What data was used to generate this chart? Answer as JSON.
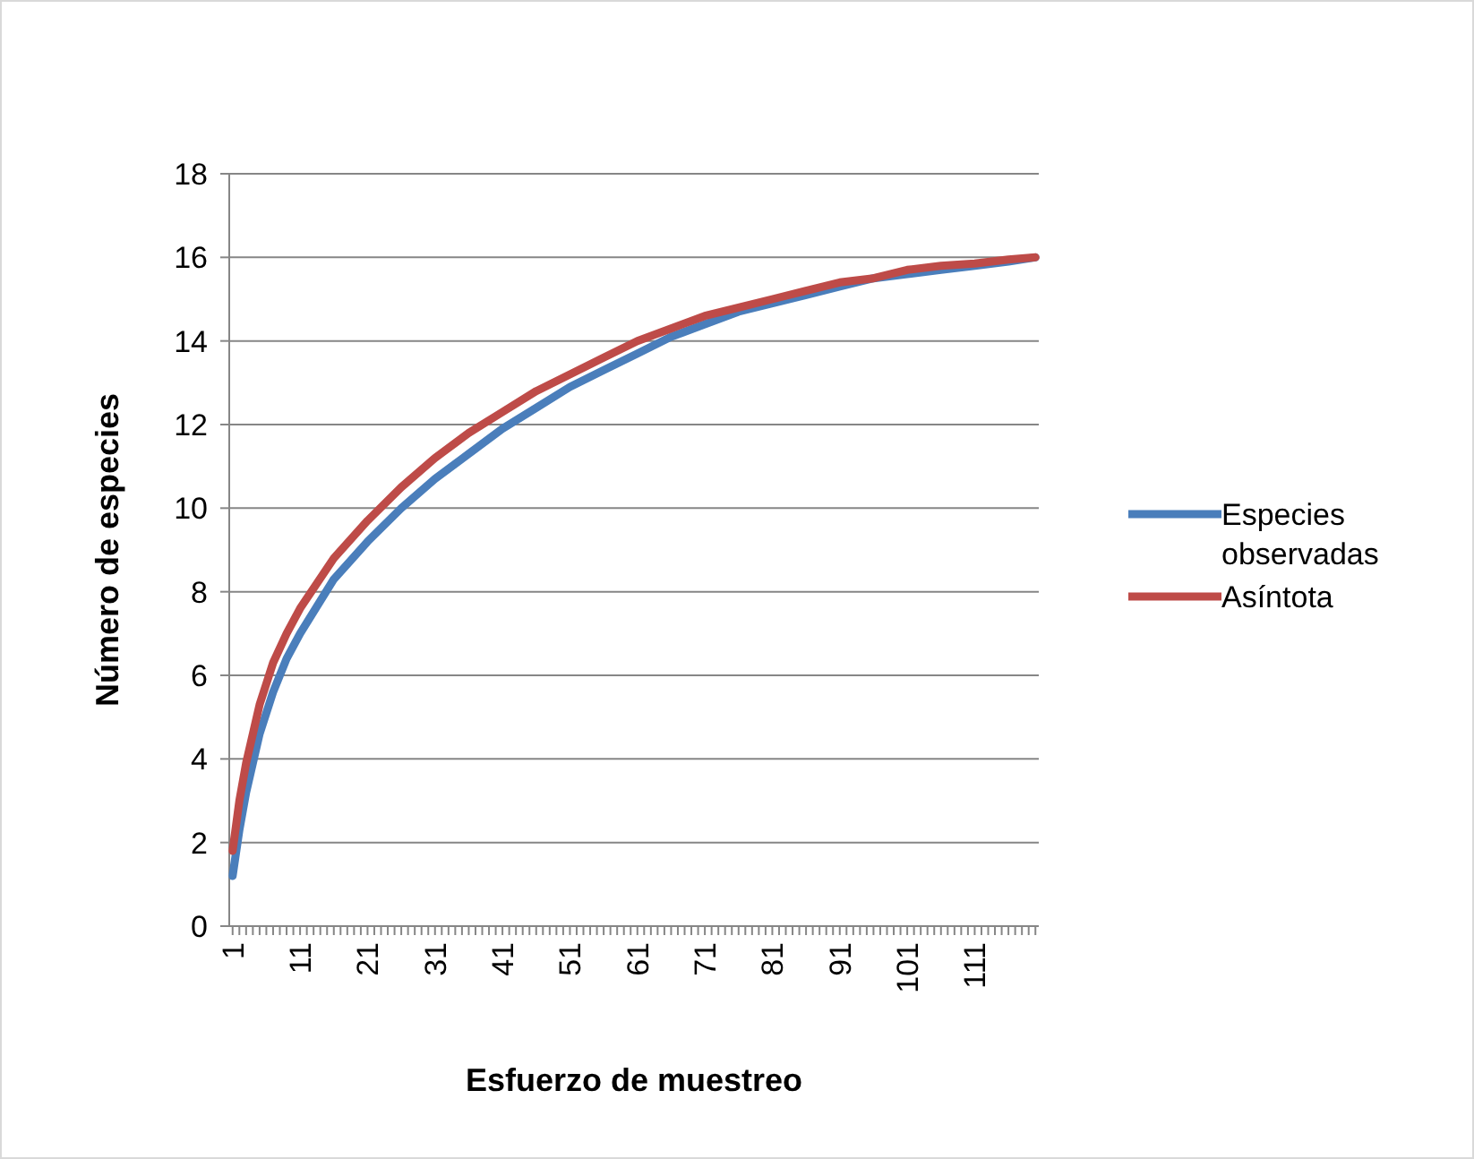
{
  "chart_data": {
    "type": "line",
    "xlabel": "Esfuerzo de muestreo",
    "ylabel": "Número de especies",
    "xlim": [
      0.5,
      120.5
    ],
    "ylim": [
      0,
      18
    ],
    "yticks": [
      0,
      2,
      4,
      6,
      8,
      10,
      12,
      14,
      16,
      18
    ],
    "xticks": [
      1,
      {
        "value": 2,
        "label": null
      },
      {
        "value": 3,
        "label": null
      },
      {
        "value": 4,
        "label": null
      },
      {
        "value": 5,
        "label": null
      },
      {
        "value": 6,
        "label": null
      },
      {
        "value": 7,
        "label": null
      },
      {
        "value": 8,
        "label": null
      },
      {
        "value": 9,
        "label": null
      },
      {
        "value": 10,
        "label": null
      },
      11,
      {
        "value": 12,
        "label": null
      },
      {
        "value": 13,
        "label": null
      },
      {
        "value": 14,
        "label": null
      },
      {
        "value": 15,
        "label": null
      },
      {
        "value": 16,
        "label": null
      },
      {
        "value": 17,
        "label": null
      },
      {
        "value": 18,
        "label": null
      },
      {
        "value": 19,
        "label": null
      },
      {
        "value": 20,
        "label": null
      },
      21,
      {
        "value": 22,
        "label": null
      },
      {
        "value": 23,
        "label": null
      },
      {
        "value": 24,
        "label": null
      },
      {
        "value": 25,
        "label": null
      },
      {
        "value": 26,
        "label": null
      },
      {
        "value": 27,
        "label": null
      },
      {
        "value": 28,
        "label": null
      },
      {
        "value": 29,
        "label": null
      },
      {
        "value": 30,
        "label": null
      },
      31,
      {
        "value": 32,
        "label": null
      },
      {
        "value": 33,
        "label": null
      },
      {
        "value": 34,
        "label": null
      },
      {
        "value": 35,
        "label": null
      },
      {
        "value": 36,
        "label": null
      },
      {
        "value": 37,
        "label": null
      },
      {
        "value": 38,
        "label": null
      },
      {
        "value": 39,
        "label": null
      },
      {
        "value": 40,
        "label": null
      },
      41,
      {
        "value": 42,
        "label": null
      },
      {
        "value": 43,
        "label": null
      },
      {
        "value": 44,
        "label": null
      },
      {
        "value": 45,
        "label": null
      },
      {
        "value": 46,
        "label": null
      },
      {
        "value": 47,
        "label": null
      },
      {
        "value": 48,
        "label": null
      },
      {
        "value": 49,
        "label": null
      },
      {
        "value": 50,
        "label": null
      },
      51,
      {
        "value": 52,
        "label": null
      },
      {
        "value": 53,
        "label": null
      },
      {
        "value": 54,
        "label": null
      },
      {
        "value": 55,
        "label": null
      },
      {
        "value": 56,
        "label": null
      },
      {
        "value": 57,
        "label": null
      },
      {
        "value": 58,
        "label": null
      },
      {
        "value": 59,
        "label": null
      },
      {
        "value": 60,
        "label": null
      },
      61,
      {
        "value": 62,
        "label": null
      },
      {
        "value": 63,
        "label": null
      },
      {
        "value": 64,
        "label": null
      },
      {
        "value": 65,
        "label": null
      },
      {
        "value": 66,
        "label": null
      },
      {
        "value": 67,
        "label": null
      },
      {
        "value": 68,
        "label": null
      },
      {
        "value": 69,
        "label": null
      },
      {
        "value": 70,
        "label": null
      },
      71,
      {
        "value": 72,
        "label": null
      },
      {
        "value": 73,
        "label": null
      },
      {
        "value": 74,
        "label": null
      },
      {
        "value": 75,
        "label": null
      },
      {
        "value": 76,
        "label": null
      },
      {
        "value": 77,
        "label": null
      },
      {
        "value": 78,
        "label": null
      },
      {
        "value": 79,
        "label": null
      },
      {
        "value": 80,
        "label": null
      },
      81,
      {
        "value": 82,
        "label": null
      },
      {
        "value": 83,
        "label": null
      },
      {
        "value": 84,
        "label": null
      },
      {
        "value": 85,
        "label": null
      },
      {
        "value": 86,
        "label": null
      },
      {
        "value": 87,
        "label": null
      },
      {
        "value": 88,
        "label": null
      },
      {
        "value": 89,
        "label": null
      },
      {
        "value": 90,
        "label": null
      },
      91,
      {
        "value": 92,
        "label": null
      },
      {
        "value": 93,
        "label": null
      },
      {
        "value": 94,
        "label": null
      },
      {
        "value": 95,
        "label": null
      },
      {
        "value": 96,
        "label": null
      },
      {
        "value": 97,
        "label": null
      },
      {
        "value": 98,
        "label": null
      },
      {
        "value": 99,
        "label": null
      },
      {
        "value": 100,
        "label": null
      },
      101,
      {
        "value": 102,
        "label": null
      },
      {
        "value": 103,
        "label": null
      },
      {
        "value": 104,
        "label": null
      },
      {
        "value": 105,
        "label": null
      },
      {
        "value": 106,
        "label": null
      },
      {
        "value": 107,
        "label": null
      },
      {
        "value": 108,
        "label": null
      },
      {
        "value": 109,
        "label": null
      },
      {
        "value": 110,
        "label": null
      },
      111,
      {
        "value": 112,
        "label": null
      },
      {
        "value": 113,
        "label": null
      },
      {
        "value": 114,
        "label": null
      },
      {
        "value": 115,
        "label": null
      },
      {
        "value": 116,
        "label": null
      },
      {
        "value": 117,
        "label": null
      },
      {
        "value": 118,
        "label": null
      },
      {
        "value": 119,
        "label": null
      },
      {
        "value": 120,
        "label": null
      }
    ],
    "x": [
      1,
      2,
      3,
      5,
      7,
      9,
      11,
      16,
      21,
      26,
      31,
      36,
      41,
      46,
      51,
      56,
      61,
      66,
      71,
      76,
      81,
      86,
      91,
      96,
      101,
      106,
      111,
      116,
      120
    ],
    "series": [
      {
        "name": "Especies observadas",
        "color": "#4a7ebb",
        "values": [
          1.2,
          2.3,
          3.2,
          4.6,
          5.6,
          6.4,
          7.0,
          8.3,
          9.2,
          10.0,
          10.7,
          11.3,
          11.9,
          12.4,
          12.9,
          13.3,
          13.7,
          14.1,
          14.4,
          14.7,
          14.9,
          15.1,
          15.3,
          15.5,
          15.6,
          15.7,
          15.8,
          15.9,
          16
        ]
      },
      {
        "name": "Asíntota",
        "color": "#be4b48",
        "values": [
          1.8,
          3.0,
          3.9,
          5.3,
          6.3,
          7.0,
          7.6,
          8.8,
          9.7,
          10.5,
          11.2,
          11.8,
          12.3,
          12.8,
          13.2,
          13.6,
          14.0,
          14.3,
          14.6,
          14.8,
          15.0,
          15.2,
          15.4,
          15.5,
          15.7,
          15.8,
          15.85,
          15.95,
          16
        ]
      }
    ],
    "grid": "y",
    "legend": "right",
    "line_style": "solid",
    "marker": "none"
  }
}
